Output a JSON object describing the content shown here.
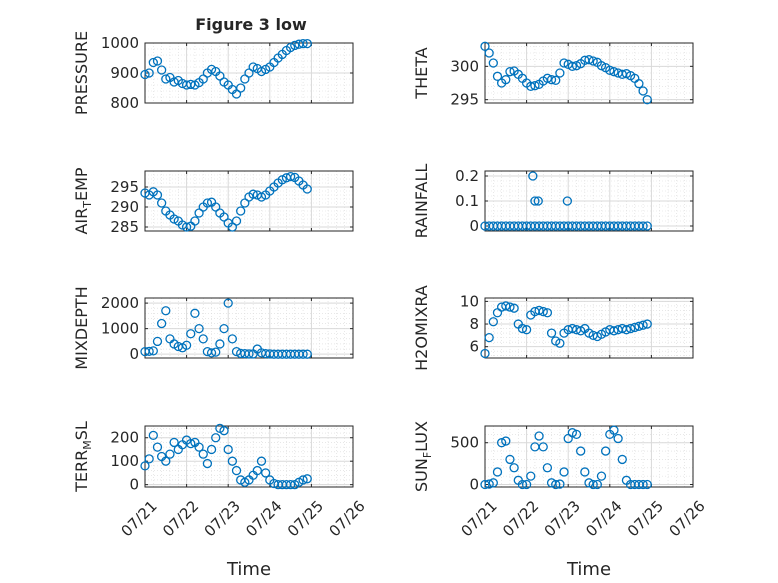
{
  "figure": {
    "title": "Figure 3 low",
    "marker_color": "#0072bd",
    "axis_color": "#262626",
    "grid_color": "#d9d9d9"
  },
  "chart_data": [
    {
      "type": "scatter",
      "ylabel": "PRESSURE",
      "xlabel": "",
      "x_domain": [
        0,
        5
      ],
      "ylim": [
        800,
        1000
      ],
      "yticks": [
        800,
        900,
        1000
      ],
      "show_xticklabels": false,
      "grid": true,
      "x": [
        0,
        0.1,
        0.2,
        0.3,
        0.4,
        0.5,
        0.6,
        0.7,
        0.8,
        0.9,
        1.0,
        1.1,
        1.2,
        1.3,
        1.4,
        1.5,
        1.6,
        1.7,
        1.8,
        1.9,
        2.0,
        2.1,
        2.2,
        2.3,
        2.4,
        2.5,
        2.6,
        2.7,
        2.8,
        2.9,
        3.0,
        3.1,
        3.2,
        3.3,
        3.4,
        3.5,
        3.6,
        3.7,
        3.8,
        3.9
      ],
      "y": [
        895,
        900,
        935,
        940,
        910,
        880,
        885,
        870,
        875,
        865,
        860,
        862,
        860,
        868,
        880,
        900,
        912,
        905,
        890,
        870,
        860,
        845,
        830,
        850,
        880,
        900,
        920,
        915,
        905,
        912,
        920,
        935,
        950,
        962,
        975,
        985,
        992,
        996,
        998,
        998
      ]
    },
    {
      "type": "scatter",
      "ylabel": "THETA",
      "xlabel": "",
      "x_domain": [
        0,
        5
      ],
      "ylim": [
        294.5,
        303.5
      ],
      "yticks": [
        295,
        300
      ],
      "show_xticklabels": false,
      "grid": true,
      "x": [
        0,
        0.1,
        0.2,
        0.3,
        0.4,
        0.5,
        0.6,
        0.7,
        0.8,
        0.9,
        1.0,
        1.1,
        1.2,
        1.3,
        1.4,
        1.5,
        1.6,
        1.7,
        1.8,
        1.9,
        2.0,
        2.1,
        2.2,
        2.3,
        2.4,
        2.5,
        2.6,
        2.7,
        2.8,
        2.9,
        3.0,
        3.1,
        3.2,
        3.3,
        3.4,
        3.5,
        3.6,
        3.7,
        3.8,
        3.9
      ],
      "y": [
        303,
        302,
        300.5,
        298.5,
        297.5,
        298,
        299.2,
        299.3,
        298.8,
        298.2,
        297.5,
        297,
        297.1,
        297.3,
        297.8,
        298.2,
        298,
        297.9,
        299,
        300.5,
        300.3,
        300,
        300.1,
        300.4,
        300.9,
        301,
        300.8,
        300.6,
        300.1,
        299.8,
        299.4,
        299.2,
        299,
        298.8,
        298.9,
        298.6,
        298.2,
        297.4,
        296.3,
        295
      ]
    },
    {
      "type": "scatter",
      "ylabel": "AIR_TEMP",
      "xlabel": "",
      "x_domain": [
        0,
        5
      ],
      "ylim": [
        284,
        299
      ],
      "yticks": [
        285,
        290,
        295
      ],
      "show_xticklabels": false,
      "grid": true,
      "x": [
        0,
        0.1,
        0.2,
        0.3,
        0.4,
        0.5,
        0.6,
        0.7,
        0.8,
        0.9,
        1.0,
        1.1,
        1.2,
        1.3,
        1.4,
        1.5,
        1.6,
        1.7,
        1.8,
        1.9,
        2.0,
        2.1,
        2.2,
        2.3,
        2.4,
        2.5,
        2.6,
        2.7,
        2.8,
        2.9,
        3.0,
        3.1,
        3.2,
        3.3,
        3.4,
        3.5,
        3.6,
        3.7,
        3.8,
        3.9
      ],
      "y": [
        293.5,
        293,
        293.8,
        293,
        291,
        289,
        288,
        287,
        286.5,
        285.5,
        285,
        285.2,
        286.5,
        288.5,
        290,
        291,
        291.2,
        290,
        288.5,
        287.5,
        286,
        285,
        286.5,
        289,
        291,
        292.5,
        293.2,
        293,
        292.5,
        293,
        294,
        295,
        296,
        296.8,
        297.3,
        297.6,
        297.4,
        296.5,
        295.5,
        294.5
      ]
    },
    {
      "type": "scatter",
      "ylabel": "RAINFALL",
      "xlabel": "",
      "x_domain": [
        0,
        5
      ],
      "ylim": [
        -0.02,
        0.22
      ],
      "yticks": [
        0,
        0.1,
        0.2
      ],
      "show_xticklabels": false,
      "grid": true,
      "x": [
        0,
        0.1,
        0.2,
        0.3,
        0.4,
        0.5,
        0.6,
        0.7,
        0.8,
        0.9,
        1.0,
        1.1,
        1.2,
        1.3,
        1.4,
        1.5,
        1.6,
        1.7,
        1.8,
        1.9,
        2.0,
        2.1,
        2.2,
        2.3,
        2.4,
        2.5,
        2.6,
        2.7,
        2.8,
        2.9,
        3.0,
        3.1,
        3.2,
        3.3,
        3.4,
        3.5,
        3.6,
        3.7,
        3.8,
        3.9,
        1.15,
        1.2,
        1.28,
        1.98
      ],
      "y": [
        0,
        0,
        0,
        0,
        0,
        0,
        0,
        0,
        0,
        0,
        0,
        0,
        0,
        0,
        0,
        0,
        0,
        0,
        0,
        0,
        0,
        0,
        0,
        0,
        0,
        0,
        0,
        0,
        0,
        0,
        0,
        0,
        0,
        0,
        0,
        0,
        0,
        0,
        0,
        0,
        0.2,
        0.1,
        0.1,
        0.1
      ]
    },
    {
      "type": "scatter",
      "ylabel": "MIXDEPTH",
      "xlabel": "",
      "x_domain": [
        0,
        5
      ],
      "ylim": [
        -150,
        2200
      ],
      "yticks": [
        0,
        1000,
        2000
      ],
      "show_xticklabels": false,
      "grid": true,
      "x": [
        0,
        0.1,
        0.2,
        0.3,
        0.4,
        0.5,
        0.6,
        0.7,
        0.8,
        0.9,
        1.0,
        1.1,
        1.2,
        1.3,
        1.4,
        1.5,
        1.6,
        1.7,
        1.8,
        1.9,
        2.0,
        2.1,
        2.2,
        2.3,
        2.4,
        2.5,
        2.6,
        2.7,
        2.8,
        2.9,
        3.0,
        3.1,
        3.2,
        3.3,
        3.4,
        3.5,
        3.6,
        3.7,
        3.8,
        3.9
      ],
      "y": [
        100,
        110,
        130,
        500,
        1200,
        1700,
        600,
        400,
        300,
        250,
        350,
        800,
        1600,
        1000,
        600,
        100,
        50,
        80,
        400,
        1000,
        2000,
        600,
        100,
        30,
        20,
        10,
        10,
        200,
        50,
        20,
        10,
        0,
        0,
        0,
        0,
        0,
        0,
        0,
        0,
        0
      ]
    },
    {
      "type": "scatter",
      "ylabel": "H2OMIXRA",
      "xlabel": "",
      "x_domain": [
        0,
        5
      ],
      "ylim": [
        5,
        10.3
      ],
      "yticks": [
        6,
        8,
        10
      ],
      "show_xticklabels": false,
      "grid": true,
      "x": [
        0,
        0.1,
        0.2,
        0.3,
        0.4,
        0.5,
        0.6,
        0.7,
        0.8,
        0.9,
        1.0,
        1.1,
        1.2,
        1.3,
        1.4,
        1.5,
        1.6,
        1.7,
        1.8,
        1.9,
        2.0,
        2.1,
        2.2,
        2.3,
        2.4,
        2.5,
        2.6,
        2.7,
        2.8,
        2.9,
        3.0,
        3.1,
        3.2,
        3.3,
        3.4,
        3.5,
        3.6,
        3.7,
        3.8,
        3.9
      ],
      "y": [
        5.4,
        6.8,
        8.2,
        9,
        9.5,
        9.6,
        9.5,
        9.4,
        8,
        7.6,
        7.5,
        8.8,
        9.1,
        9.2,
        9.1,
        9,
        7.2,
        6.5,
        6.3,
        7.2,
        7.5,
        7.6,
        7.5,
        7.4,
        7.6,
        7.2,
        7,
        6.9,
        7.1,
        7.3,
        7.5,
        7.4,
        7.5,
        7.6,
        7.5,
        7.6,
        7.7,
        7.8,
        7.9,
        8
      ]
    },
    {
      "type": "scatter",
      "ylabel": "TERR_MSL",
      "xlabel": "Time",
      "x_domain": [
        0,
        5
      ],
      "xtick_labels": [
        "07/21",
        "07/22",
        "07/23",
        "07/24",
        "07/25",
        "07/26"
      ],
      "ylim": [
        -10,
        250
      ],
      "yticks": [
        0,
        100,
        200
      ],
      "show_xticklabels": true,
      "grid": true,
      "x": [
        0,
        0.1,
        0.2,
        0.3,
        0.4,
        0.5,
        0.6,
        0.7,
        0.8,
        0.9,
        1.0,
        1.1,
        1.2,
        1.3,
        1.4,
        1.5,
        1.6,
        1.7,
        1.8,
        1.9,
        2.0,
        2.1,
        2.2,
        2.3,
        2.4,
        2.5,
        2.6,
        2.7,
        2.8,
        2.9,
        3.0,
        3.1,
        3.2,
        3.3,
        3.4,
        3.5,
        3.6,
        3.7,
        3.8,
        3.9
      ],
      "y": [
        80,
        110,
        210,
        160,
        120,
        100,
        130,
        180,
        150,
        170,
        190,
        175,
        180,
        160,
        130,
        90,
        150,
        200,
        240,
        230,
        150,
        100,
        60,
        20,
        10,
        20,
        40,
        60,
        100,
        50,
        20,
        5,
        0,
        0,
        0,
        0,
        0,
        10,
        20,
        25
      ]
    },
    {
      "type": "scatter",
      "ylabel": "SUN_FLUX",
      "xlabel": "Time",
      "x_domain": [
        0,
        5
      ],
      "xtick_labels": [
        "07/21",
        "07/22",
        "07/23",
        "07/24",
        "07/25",
        "07/26"
      ],
      "ylim": [
        -30,
        700
      ],
      "yticks": [
        0,
        500
      ],
      "show_xticklabels": true,
      "grid": true,
      "x": [
        0,
        0.1,
        0.2,
        0.3,
        0.4,
        0.5,
        0.6,
        0.7,
        0.8,
        0.9,
        1.0,
        1.1,
        1.2,
        1.3,
        1.4,
        1.5,
        1.6,
        1.7,
        1.8,
        1.9,
        2.0,
        2.1,
        2.2,
        2.3,
        2.4,
        2.5,
        2.6,
        2.7,
        2.8,
        2.9,
        3.0,
        3.1,
        3.2,
        3.3,
        3.4,
        3.5,
        3.6,
        3.7,
        3.8,
        3.9
      ],
      "y": [
        0,
        5,
        20,
        150,
        500,
        520,
        300,
        200,
        50,
        0,
        0,
        100,
        450,
        580,
        450,
        200,
        20,
        0,
        5,
        150,
        550,
        620,
        600,
        400,
        150,
        20,
        0,
        0,
        100,
        400,
        600,
        650,
        550,
        300,
        50,
        0,
        0,
        0,
        0,
        0
      ]
    }
  ]
}
